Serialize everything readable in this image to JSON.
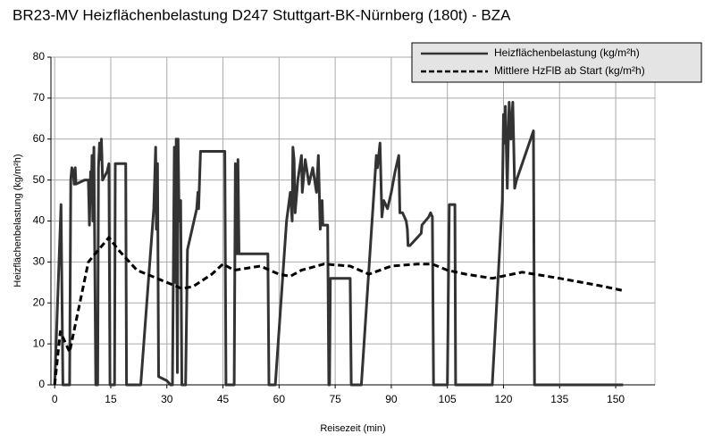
{
  "chart_data": {
    "type": "line",
    "title": "BR23-MV Heizflächenbelastung D247 Stuttgart-BK-Nürnberg (180t) - BZA",
    "x_label": "Reisezeit (min)",
    "y_label": "Heizflächenbelastung (kg/m²h)",
    "xlim": [
      -1,
      160.5
    ],
    "xticks": [
      0,
      15,
      30,
      45,
      60,
      75,
      90,
      105,
      120,
      135,
      150
    ],
    "ylim": [
      0,
      80
    ],
    "yticks": [
      0,
      10,
      20,
      30,
      40,
      50,
      60,
      70,
      80
    ],
    "grid": true,
    "legend": "top-right",
    "series": [
      {
        "name": "Heizflächenbelastung (kg/m²h)",
        "color": "#333333",
        "line_style": "solid",
        "x": [
          0,
          1.7,
          2.2,
          4,
          4.3,
          4.6,
          5,
          5.2,
          5.5,
          5.7,
          8,
          9,
          9.3,
          9.6,
          9.8,
          10,
          10.2,
          10.5,
          11,
          11.5,
          11.7,
          12,
          12.3,
          12.5,
          12.8,
          14,
          14.5,
          14.8,
          16,
          16.2,
          19,
          19.2,
          23,
          26.5,
          27,
          27.2,
          27.5,
          27.8,
          30,
          31,
          31.5,
          32,
          32.3,
          32.5,
          32.8,
          33,
          33.2,
          33.5,
          33.7,
          34,
          35,
          35.5,
          38,
          38.3,
          38.5,
          39,
          44,
          45.5,
          45.8,
          48,
          48.3,
          48.5,
          48.8,
          49,
          49.3,
          57,
          57.3,
          59,
          62,
          63,
          63.5,
          63.7,
          64,
          64.3,
          65,
          66,
          66.2,
          66.5,
          67,
          68,
          69,
          70,
          70.5,
          71,
          71.5,
          71.7,
          73,
          73.3,
          73.5,
          73.7,
          79,
          79.3,
          82,
          86,
          86.3,
          87,
          87.5,
          88,
          89,
          90,
          91,
          92,
          92.3,
          93,
          94,
          94.3,
          94.5,
          95,
          97,
          98,
          98.2,
          100,
          100.5,
          101,
          101.3,
          105,
          105.5,
          107,
          107.2,
          117,
          119.7,
          120,
          120.3,
          120.5,
          121,
          121.5,
          122,
          122.5,
          123,
          123.5,
          128,
          128.3,
          152
        ],
        "values": [
          0,
          44,
          0,
          0,
          50,
          53,
          52,
          49,
          53,
          49,
          50,
          50,
          39,
          52,
          47,
          56,
          40,
          58,
          0,
          0,
          53,
          59,
          55,
          60,
          50,
          52,
          54,
          0,
          0,
          54,
          54,
          0,
          0,
          43,
          58,
          38,
          54,
          2,
          1,
          0,
          0,
          58,
          25,
          60,
          3,
          60,
          45,
          40,
          45,
          0,
          0,
          33,
          43,
          47,
          43,
          57,
          57,
          57,
          0,
          0,
          54,
          52,
          32,
          55,
          32,
          32,
          0,
          0,
          40,
          47,
          40,
          58,
          55,
          42,
          50,
          56,
          47,
          50,
          55,
          49,
          53,
          47,
          56,
          38,
          45,
          39,
          39,
          0,
          0,
          26,
          26,
          0,
          0,
          56,
          53,
          59,
          41,
          45,
          43,
          47,
          52,
          56,
          42,
          42,
          40,
          38,
          34,
          34,
          36,
          37,
          39,
          41,
          42,
          41,
          0,
          0,
          44,
          44,
          0,
          0,
          45,
          66,
          59,
          68,
          48,
          69,
          60,
          69,
          48,
          50,
          62,
          0,
          0
        ]
      },
      {
        "name": "Mittlere HzFlB ab Start (kg/m²h)",
        "color": "#000000",
        "line_style": "dashed",
        "x": [
          0,
          1.5,
          4,
          9,
          14.5,
          17,
          22,
          30,
          34,
          37,
          42,
          45,
          48,
          55,
          60,
          63,
          66,
          72,
          79,
          84,
          90,
          97,
          101,
          105,
          110,
          117,
          125,
          135,
          147,
          152
        ],
        "values": [
          0,
          13,
          8,
          30,
          36,
          33,
          28,
          25,
          23.5,
          24,
          27,
          29.5,
          28,
          29,
          27,
          26.5,
          28,
          29.5,
          29,
          27,
          29,
          29.5,
          29.5,
          28,
          27,
          26,
          27.5,
          26,
          24,
          23
        ]
      }
    ]
  }
}
